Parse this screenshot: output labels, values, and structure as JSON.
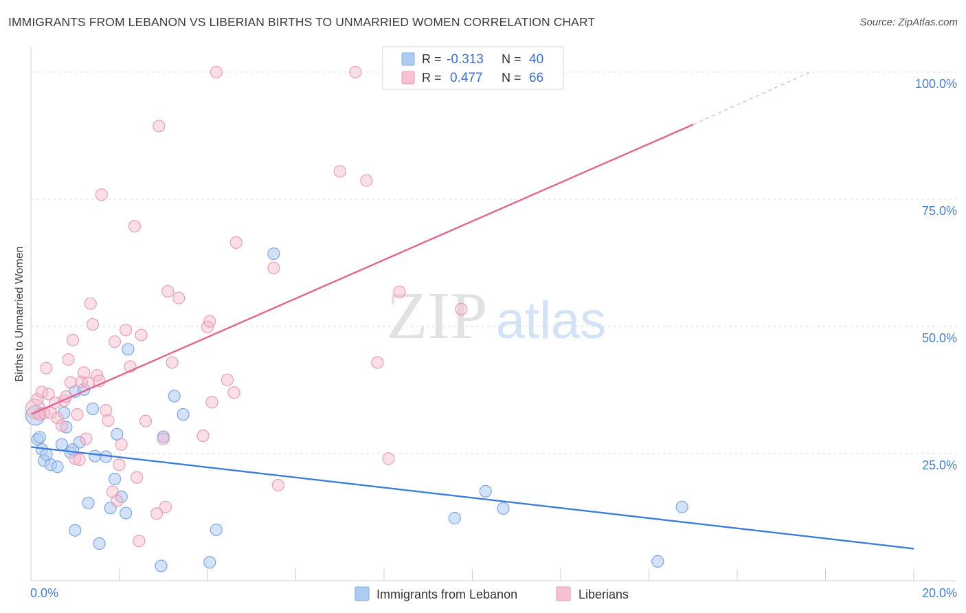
{
  "title": "IMMIGRANTS FROM LEBANON VS LIBERIAN BIRTHS TO UNMARRIED WOMEN CORRELATION CHART",
  "source": "Source: ZipAtlas.com",
  "watermark": {
    "zip": "ZIP",
    "atlas": "atlas"
  },
  "colors": {
    "blue": "#3b7dd8",
    "blue_fill": "#aecbf2",
    "pink": "#e06690",
    "pink_fill": "#f5b8ca",
    "tick_label": "#4a7cc9",
    "grid": "#dcdcdc"
  },
  "legend_top": {
    "rows": [
      {
        "r_label": "R =",
        "r_value": "-0.313",
        "n_label": "N =",
        "n_value": "40"
      },
      {
        "r_label": "R =",
        "r_value": "0.477",
        "n_label": "N =",
        "n_value": "66"
      }
    ]
  },
  "legend_bottom": [
    "Immigrants from Lebanon",
    "Liberians"
  ],
  "chart_data": {
    "type": "scatter",
    "title": "IMMIGRANTS FROM LEBANON VS LIBERIAN BIRTHS TO UNMARRIED WOMEN CORRELATION CHART",
    "xlabel": "",
    "ylabel": "Births to Unmarried Women",
    "xlim": [
      0,
      20
    ],
    "ylim": [
      0,
      105
    ],
    "x_tick_labels": [
      "0.0%",
      "20.0%"
    ],
    "y_ticks": [
      25,
      50,
      75,
      100
    ],
    "y_tick_labels": [
      "25.0%",
      "50.0%",
      "75.0%",
      "100.0%"
    ],
    "grid": true,
    "legend_position": "bottom",
    "series": [
      {
        "name": "Immigrants from Lebanon",
        "color": "#3b7dd8",
        "points": [
          [
            0.1,
            32.5
          ],
          [
            0.15,
            27.8
          ],
          [
            0.2,
            28.2
          ],
          [
            0.25,
            25.8
          ],
          [
            0.3,
            23.6
          ],
          [
            0.35,
            24.8
          ],
          [
            0.45,
            22.8
          ],
          [
            0.6,
            22.4
          ],
          [
            0.7,
            26.8
          ],
          [
            0.75,
            33.0
          ],
          [
            0.8,
            30.2
          ],
          [
            0.9,
            25.2
          ],
          [
            0.95,
            25.8
          ],
          [
            1.0,
            37.2
          ],
          [
            1.1,
            27.2
          ],
          [
            1.2,
            37.6
          ],
          [
            1.3,
            15.3
          ],
          [
            1.4,
            33.8
          ],
          [
            1.45,
            24.5
          ],
          [
            1.55,
            7.3
          ],
          [
            1.7,
            24.4
          ],
          [
            1.8,
            14.3
          ],
          [
            1.9,
            20.0
          ],
          [
            1.95,
            28.8
          ],
          [
            2.05,
            16.5
          ],
          [
            2.15,
            13.3
          ],
          [
            2.2,
            45.5
          ],
          [
            1.0,
            9.9
          ],
          [
            2.95,
            2.9
          ],
          [
            3.0,
            28.3
          ],
          [
            3.25,
            36.3
          ],
          [
            3.45,
            32.7
          ],
          [
            4.05,
            3.6
          ],
          [
            4.2,
            10.0
          ],
          [
            5.5,
            64.3
          ],
          [
            9.6,
            12.3
          ],
          [
            10.3,
            17.6
          ],
          [
            10.7,
            14.2
          ],
          [
            14.75,
            14.5
          ],
          [
            14.2,
            3.8
          ]
        ],
        "trend": {
          "x0": 0.0,
          "y0": 26.3,
          "x1": 20.0,
          "y1": 6.3
        }
      },
      {
        "name": "Liberians",
        "color": "#e06690",
        "points": [
          [
            0.1,
            33.8
          ],
          [
            0.15,
            35.7
          ],
          [
            0.2,
            32.7
          ],
          [
            0.25,
            37.1
          ],
          [
            0.3,
            33.0
          ],
          [
            0.35,
            41.8
          ],
          [
            0.4,
            36.7
          ],
          [
            0.45,
            33.0
          ],
          [
            0.55,
            35.0
          ],
          [
            0.6,
            32.0
          ],
          [
            0.7,
            30.5
          ],
          [
            0.75,
            35.4
          ],
          [
            0.8,
            36.2
          ],
          [
            0.85,
            43.5
          ],
          [
            0.9,
            39.0
          ],
          [
            0.95,
            47.3
          ],
          [
            1.0,
            24.0
          ],
          [
            1.05,
            32.7
          ],
          [
            1.1,
            23.8
          ],
          [
            1.15,
            39.1
          ],
          [
            1.2,
            40.9
          ],
          [
            1.25,
            27.9
          ],
          [
            1.3,
            38.9
          ],
          [
            1.35,
            54.5
          ],
          [
            1.4,
            50.4
          ],
          [
            1.5,
            40.4
          ],
          [
            1.55,
            39.3
          ],
          [
            1.6,
            75.9
          ],
          [
            1.7,
            33.5
          ],
          [
            1.75,
            31.5
          ],
          [
            1.85,
            17.5
          ],
          [
            1.9,
            47.0
          ],
          [
            1.95,
            15.7
          ],
          [
            2.0,
            22.8
          ],
          [
            2.05,
            26.8
          ],
          [
            2.15,
            49.3
          ],
          [
            2.25,
            42.1
          ],
          [
            2.35,
            69.7
          ],
          [
            2.4,
            20.3
          ],
          [
            2.45,
            7.8
          ],
          [
            2.5,
            48.3
          ],
          [
            2.6,
            31.4
          ],
          [
            2.85,
            13.2
          ],
          [
            2.9,
            89.4
          ],
          [
            3.0,
            27.9
          ],
          [
            3.05,
            14.5
          ],
          [
            3.1,
            56.9
          ],
          [
            3.2,
            42.9
          ],
          [
            3.35,
            55.6
          ],
          [
            3.9,
            28.5
          ],
          [
            4.0,
            49.9
          ],
          [
            4.05,
            51.0
          ],
          [
            4.1,
            35.1
          ],
          [
            4.2,
            100.0
          ],
          [
            4.45,
            39.5
          ],
          [
            4.6,
            37.0
          ],
          [
            4.65,
            66.5
          ],
          [
            5.5,
            61.5
          ],
          [
            5.6,
            18.8
          ],
          [
            7.0,
            80.5
          ],
          [
            7.35,
            100.0
          ],
          [
            7.6,
            78.7
          ],
          [
            7.85,
            42.9
          ],
          [
            8.1,
            24.0
          ],
          [
            8.35,
            56.8
          ],
          [
            9.75,
            53.4
          ]
        ],
        "trend": {
          "x0": 0.0,
          "y0": 32.7,
          "x1": 15.0,
          "y1": 89.7
        },
        "trend_dashed": {
          "x0": 15.0,
          "y0": 89.7,
          "x1": 17.65,
          "y1": 100.0
        }
      }
    ]
  }
}
